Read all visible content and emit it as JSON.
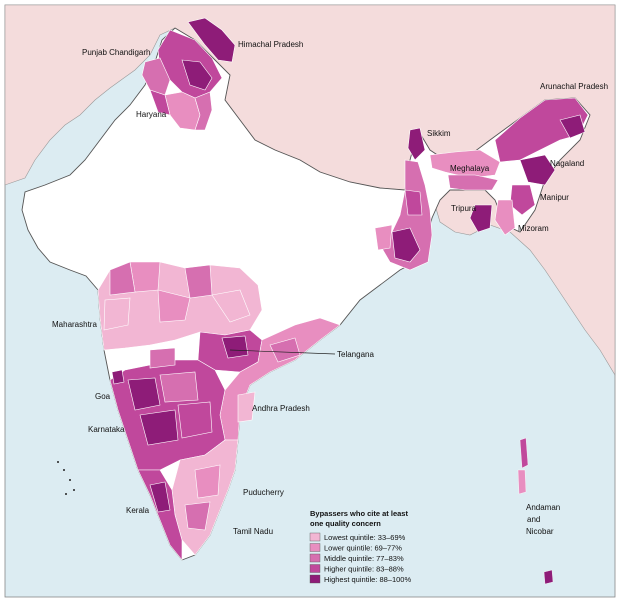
{
  "colors": {
    "sea": "#dcecf2",
    "neighbour_land": "#f4dcdc",
    "india_land": "#ffffff",
    "border": "#444444",
    "q1": "#f2b6d3",
    "q2": "#e88ec0",
    "q3": "#d66fb0",
    "q4": "#c0489c",
    "q5": "#8e1c78"
  },
  "labels": {
    "punjab_chandigarh": "Punjab Chandigarh",
    "himachal_pradesh": "Himachal Pradesh",
    "haryana": "Haryana",
    "arunachal_pradesh": "Arunachal Pradesh",
    "sikkim": "Sikkim",
    "nagaland": "Nagaland",
    "meghalaya": "Meghalaya",
    "manipur": "Manipur",
    "tripura": "Tripura",
    "mizoram": "Mizoram",
    "maharashtra": "Maharashtra",
    "telangana": "Telangana",
    "goa": "Goa",
    "andhra_pradesh": "Andhra Pradesh",
    "karnataka": "Karnataka",
    "puducherry": "Puducherry",
    "kerala": "Kerala",
    "tamil_nadu": "Tamil Nadu",
    "andaman_nicobar_1": "Andaman",
    "andaman_nicobar_2": "and",
    "andaman_nicobar_3": "Nicobar"
  },
  "legend": {
    "title_line1": "Bypassers who cite at least",
    "title_line2": "one quality concern",
    "items": [
      {
        "label": "Lowest quintile: 33–69%",
        "color_key": "q1"
      },
      {
        "label": "Lower quintile: 69–77%",
        "color_key": "q2"
      },
      {
        "label": "Middle quintile: 77–83%",
        "color_key": "q3"
      },
      {
        "label": "Higher quintile: 83–88%",
        "color_key": "q4"
      },
      {
        "label": "Highest quintile: 88–100%",
        "color_key": "q5"
      }
    ]
  }
}
